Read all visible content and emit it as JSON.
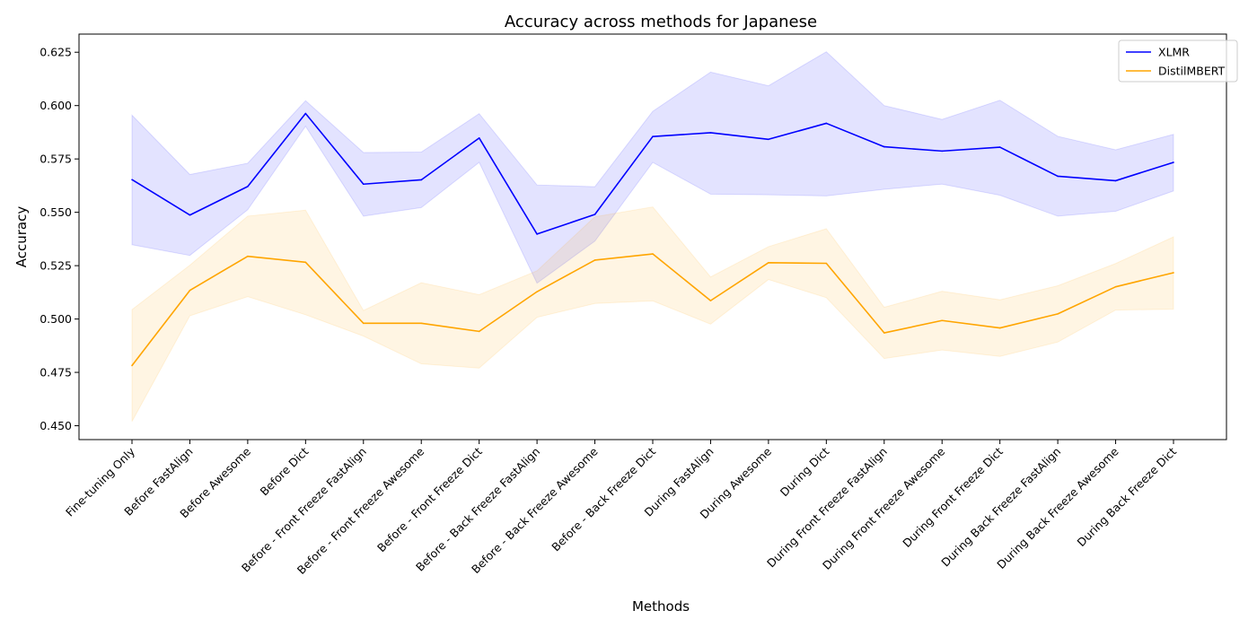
{
  "chart_data": {
    "type": "line",
    "title": "Accuracy across methods for Japanese",
    "xlabel": "Methods",
    "ylabel": "Accuracy",
    "ylim": [
      0.4435,
      0.6335
    ],
    "yticks": [
      0.45,
      0.475,
      0.5,
      0.525,
      0.55,
      0.575,
      0.6,
      0.625
    ],
    "ytick_labels": [
      "0.450",
      "0.475",
      "0.500",
      "0.525",
      "0.550",
      "0.575",
      "0.600",
      "0.625"
    ],
    "grid": false,
    "legend_position": "top-right",
    "shaded_band": "min-max range per method",
    "categories": [
      "Fine-tuning Only",
      "Before FastAlign",
      "Before Awesome",
      "Before Dict",
      "Before - Front Freeze FastAlign",
      "Before - Front Freeze Awesome",
      "Before - Front Freeze Dict",
      "Before - Back Freeze FastAlign",
      "Before - Back Freeze Awesome",
      "Before - Back Freeze Dict",
      "During FastAlign",
      "During Awesome",
      "During Dict",
      "During Front Freeze FastAlign",
      "During Front Freeze Awesome",
      "During Front Freeze Dict",
      "During Back Freeze FastAlign",
      "During Back Freeze Awesome",
      "During Back Freeze Dict"
    ],
    "series": [
      {
        "name": "XLMR",
        "color": "#0000ff",
        "band_color": "#0000ff",
        "values": [
          0.5653,
          0.5487,
          0.5621,
          0.5963,
          0.5632,
          0.5652,
          0.5848,
          0.5398,
          0.549,
          0.5855,
          0.5873,
          0.5842,
          0.5917,
          0.5807,
          0.5787,
          0.5805,
          0.5669,
          0.5648,
          0.5734
        ],
        "lower": [
          0.5348,
          0.5298,
          0.5512,
          0.5903,
          0.5482,
          0.5522,
          0.5734,
          0.5168,
          0.5365,
          0.5734,
          0.5585,
          0.5582,
          0.5577,
          0.5608,
          0.5632,
          0.558,
          0.5482,
          0.5505,
          0.56
        ],
        "upper": [
          0.5955,
          0.5677,
          0.573,
          0.6023,
          0.578,
          0.5782,
          0.5962,
          0.5628,
          0.562,
          0.5973,
          0.6157,
          0.6093,
          0.6252,
          0.6,
          0.5935,
          0.6025,
          0.5856,
          0.5793,
          0.5865
        ]
      },
      {
        "name": "DistilMBERT",
        "color": "#ffa500",
        "band_color": "#ffa500",
        "values": [
          0.4782,
          0.5134,
          0.5294,
          0.5266,
          0.498,
          0.498,
          0.4942,
          0.5128,
          0.5276,
          0.5305,
          0.5086,
          0.5264,
          0.5261,
          0.4935,
          0.4993,
          0.4958,
          0.5024,
          0.5151,
          0.5217
        ],
        "lower": [
          0.452,
          0.5015,
          0.5105,
          0.502,
          0.492,
          0.479,
          0.477,
          0.5008,
          0.5073,
          0.5085,
          0.4976,
          0.5185,
          0.51,
          0.4815,
          0.4855,
          0.4825,
          0.4892,
          0.5042,
          0.5046
        ],
        "upper": [
          0.5044,
          0.5252,
          0.5482,
          0.551,
          0.504,
          0.517,
          0.5114,
          0.5226,
          0.5479,
          0.5525,
          0.5197,
          0.5339,
          0.5423,
          0.5055,
          0.513,
          0.509,
          0.5156,
          0.526,
          0.5385
        ]
      }
    ]
  }
}
